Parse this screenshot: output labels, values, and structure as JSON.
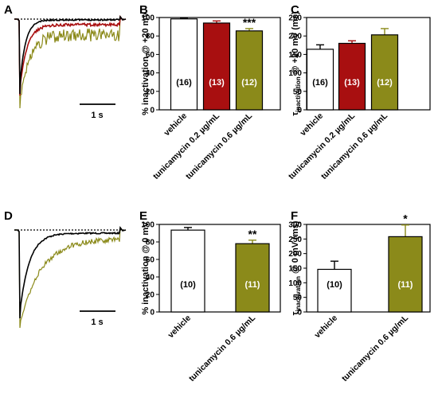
{
  "colors": {
    "vehicle": "#ffffff",
    "tunicamycin_02": "#a80f10",
    "tunicamycin_06": "#8b8a1a",
    "trace_vehicle": "#000000"
  },
  "trace_panels": [
    {
      "panel": "A",
      "scale_label": "1 s",
      "traces": [
        "vehicle",
        "tunicamycin 0.2 µg/mL",
        "tunicamycin 0.6 µg/mL"
      ]
    },
    {
      "panel": "D",
      "scale_label": "1 s",
      "traces": [
        "vehicle",
        "tunicamycin 0.6 µg/mL"
      ]
    }
  ],
  "chart_data": [
    {
      "panel": "B",
      "type": "bar",
      "ylabel": "% inactivation @ +20 mV",
      "ylim": [
        0,
        100
      ],
      "yticks": [
        0,
        20,
        40,
        60,
        80,
        100
      ],
      "categories": [
        "vehicle",
        "tunicamycin 0.2 µg/mL",
        "tunicamycin 0.6 µg/mL"
      ],
      "values": [
        98.5,
        94,
        85.5
      ],
      "errors": [
        0.8,
        2.3,
        2.5
      ],
      "n_labels": [
        "(16)",
        "(13)",
        "(12)"
      ],
      "significance": [
        "",
        "",
        "***"
      ],
      "colors": [
        "#ffffff",
        "#a80f10",
        "#8b8a1a"
      ]
    },
    {
      "panel": "C",
      "type": "bar",
      "ylabel_main": "τ",
      "ylabel_sub": "inactivation",
      "ylabel_rest": " @ +20 mV (ms)",
      "ylim": [
        0,
        250
      ],
      "yticks": [
        0,
        50,
        100,
        150,
        200,
        250
      ],
      "categories": [
        "vehicle",
        "tunicamycin 0.2 µg/mL",
        "tunicamycin 0.6 µg/mL"
      ],
      "values": [
        164,
        180,
        203
      ],
      "errors": [
        12,
        7,
        17
      ],
      "n_labels": [
        "(16)",
        "(13)",
        "(12)"
      ],
      "significance": [
        "",
        "",
        ""
      ],
      "colors": [
        "#ffffff",
        "#a80f10",
        "#8b8a1a"
      ]
    },
    {
      "panel": "E",
      "type": "bar",
      "ylabel": "% inactivation @ 0 mV",
      "ylim": [
        0,
        100
      ],
      "yticks": [
        0,
        20,
        40,
        60,
        80,
        100
      ],
      "categories": [
        "vehicle",
        "tunicamycin 0.6 µg/mL"
      ],
      "values": [
        93.5,
        78
      ],
      "errors": [
        3,
        4
      ],
      "n_labels": [
        "(10)",
        "(11)"
      ],
      "significance": [
        "",
        "**"
      ],
      "colors": [
        "#ffffff",
        "#8b8a1a"
      ]
    },
    {
      "panel": "F",
      "type": "bar",
      "ylabel_main": "τ",
      "ylabel_sub": "inactivation",
      "ylabel_rest": " @ 0 mV (ms)",
      "ylim": [
        0,
        300
      ],
      "yticks": [
        0,
        50,
        100,
        150,
        200,
        250,
        300
      ],
      "categories": [
        "vehicle",
        "tunicamycin 0.6 µg/mL"
      ],
      "values": [
        146,
        258
      ],
      "errors": [
        28,
        40
      ],
      "n_labels": [
        "(10)",
        "(11)"
      ],
      "significance": [
        "",
        "*"
      ],
      "colors": [
        "#ffffff",
        "#8b8a1a"
      ]
    }
  ]
}
